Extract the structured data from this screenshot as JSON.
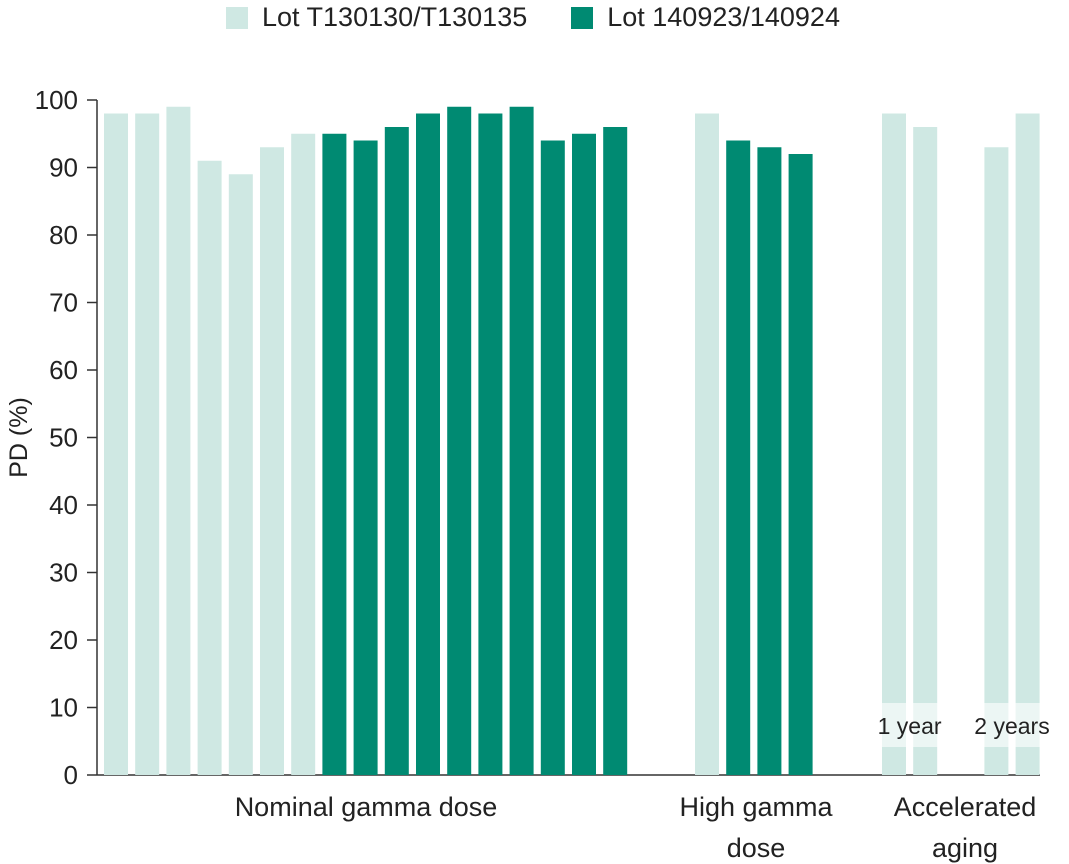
{
  "chart_data": {
    "type": "bar",
    "ylabel": "PD (%)",
    "ylim": [
      0,
      100
    ],
    "yticks": [
      0,
      10,
      20,
      30,
      40,
      50,
      60,
      70,
      80,
      90,
      100
    ],
    "grid": false,
    "legend_placement": "top",
    "series": [
      {
        "name": "Lot T130130/T130135",
        "color": "#cfe8e3"
      },
      {
        "name": "Lot 140923/140924",
        "color": "#008a72"
      }
    ],
    "groups": [
      {
        "label_lines": [
          "Nominal gamma dose"
        ],
        "bars": [
          {
            "series": 0,
            "value": 98
          },
          {
            "series": 0,
            "value": 98
          },
          {
            "series": 0,
            "value": 99
          },
          {
            "series": 0,
            "value": 91
          },
          {
            "series": 0,
            "value": 89
          },
          {
            "series": 0,
            "value": 93
          },
          {
            "series": 0,
            "value": 95
          },
          {
            "series": 1,
            "value": 95
          },
          {
            "series": 1,
            "value": 94
          },
          {
            "series": 1,
            "value": 96
          },
          {
            "series": 1,
            "value": 98
          },
          {
            "series": 1,
            "value": 99
          },
          {
            "series": 1,
            "value": 98
          },
          {
            "series": 1,
            "value": 99
          },
          {
            "series": 1,
            "value": 94
          },
          {
            "series": 1,
            "value": 95
          },
          {
            "series": 1,
            "value": 96
          }
        ]
      },
      {
        "label_lines": [
          "High gamma",
          "dose"
        ],
        "bars": [
          {
            "series": 0,
            "value": 98
          },
          {
            "series": 1,
            "value": 94
          },
          {
            "series": 1,
            "value": 93
          },
          {
            "series": 1,
            "value": 92
          }
        ]
      },
      {
        "label_lines": [
          "Accelerated",
          "aging"
        ],
        "bars": [
          {
            "series": 0,
            "value": 98
          },
          {
            "series": 0,
            "value": 96
          },
          {
            "series": 0,
            "value": 93
          },
          {
            "series": 0,
            "value": 98
          }
        ],
        "annotations": [
          {
            "text": "1 year",
            "bars": [
              0,
              1
            ]
          },
          {
            "text": "2 years",
            "bars": [
              2,
              3
            ]
          }
        ]
      }
    ]
  }
}
